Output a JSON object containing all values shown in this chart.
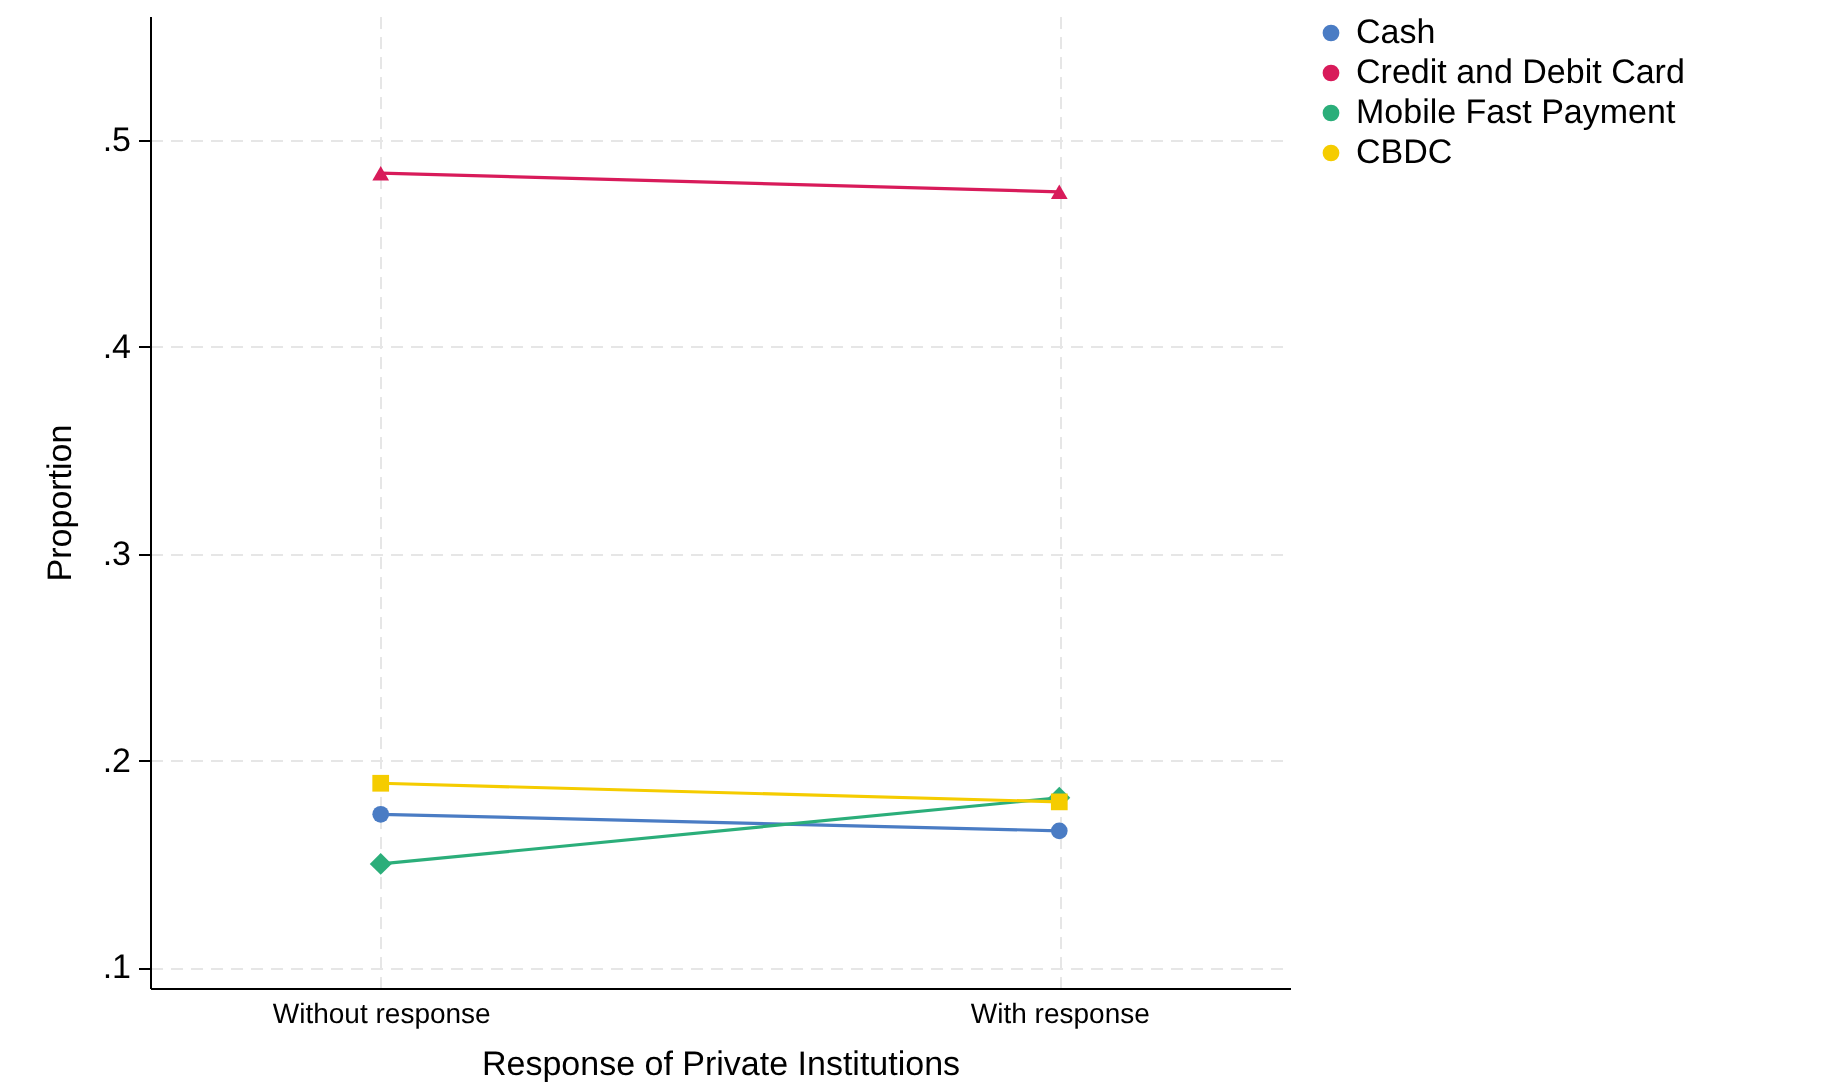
{
  "chart_data": {
    "type": "line",
    "xlabel": "Response of Private Institutions",
    "ylabel": "Proportion",
    "categories": [
      "Without response",
      "With response"
    ],
    "series": [
      {
        "name": "Cash",
        "color": "#4a7cc4",
        "marker": "circle",
        "values": [
          0.174,
          0.166
        ]
      },
      {
        "name": "Credit and Debit Card",
        "color": "#d81b5a",
        "marker": "triangle",
        "values": [
          0.484,
          0.475
        ]
      },
      {
        "name": "Mobile Fast Payment",
        "color": "#2bae7a",
        "marker": "diamond",
        "values": [
          0.15,
          0.182
        ]
      },
      {
        "name": "CBDC",
        "color": "#f5cc00",
        "marker": "square",
        "values": [
          0.189,
          0.18
        ]
      }
    ],
    "ylim": [
      0.09,
      0.56
    ],
    "yticks": [
      {
        "value": 0.1,
        "label": ".1"
      },
      {
        "value": 0.2,
        "label": ".2"
      },
      {
        "value": 0.3,
        "label": ".3"
      },
      {
        "value": 0.4,
        "label": ".4"
      },
      {
        "value": 0.5,
        "label": ".5"
      }
    ],
    "grid": true,
    "legend": "right",
    "line_style": "solid"
  }
}
